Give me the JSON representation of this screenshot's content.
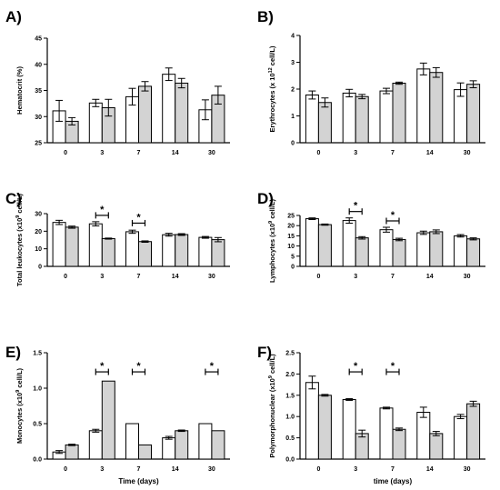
{
  "chart_data": [
    {
      "panel_label": "A)",
      "type": "bar",
      "ylabel": "Hematocrit (%)",
      "ylabel_super": "",
      "ylabel_rest": "",
      "xlabel": "",
      "categories": [
        "0",
        "3",
        "7",
        "14",
        "30"
      ],
      "ylim": [
        25,
        45
      ],
      "yticks": [
        "25",
        "30",
        "35",
        "40",
        "45"
      ],
      "series": [
        {
          "fill": "#ffffff",
          "values": [
            31.1,
            32.6,
            33.8,
            38.1,
            31.3
          ],
          "errors": [
            2.0,
            0.7,
            1.6,
            1.2,
            1.9
          ]
        },
        {
          "fill": "#d3d3d3",
          "values": [
            29.1,
            31.7,
            35.8,
            36.4,
            34.1
          ],
          "errors": [
            0.7,
            1.6,
            0.9,
            0.9,
            1.7
          ]
        }
      ],
      "significance": []
    },
    {
      "panel_label": "B)",
      "type": "bar",
      "ylabel": "Erythrocytes (x 10",
      "ylabel_super": "12",
      "ylabel_rest": " cell/L)",
      "xlabel": "",
      "categories": [
        "0",
        "3",
        "7",
        "14",
        "30"
      ],
      "ylim": [
        0,
        4
      ],
      "yticks": [
        "0",
        "1",
        "2",
        "3",
        "4"
      ],
      "series": [
        {
          "fill": "#ffffff",
          "values": [
            1.78,
            1.85,
            1.93,
            2.75,
            1.98
          ],
          "errors": [
            0.15,
            0.14,
            0.1,
            0.22,
            0.25
          ]
        },
        {
          "fill": "#d3d3d3",
          "values": [
            1.5,
            1.72,
            2.22,
            2.62,
            2.18
          ],
          "errors": [
            0.17,
            0.08,
            0.04,
            0.18,
            0.13
          ]
        }
      ],
      "significance": []
    },
    {
      "panel_label": "C)",
      "type": "bar",
      "ylabel": "Total leukocytes (x10",
      "ylabel_super": "9",
      "ylabel_rest": " cell/L)",
      "xlabel": "",
      "categories": [
        "0",
        "3",
        "7",
        "14",
        "30"
      ],
      "ylim": [
        0,
        30
      ],
      "yticks": [
        "0",
        "10",
        "20",
        "30"
      ],
      "series": [
        {
          "fill": "#ffffff",
          "values": [
            25.0,
            24.2,
            19.7,
            18.0,
            16.5
          ],
          "errors": [
            1.2,
            1.2,
            0.9,
            0.8,
            0.5
          ]
        },
        {
          "fill": "#d3d3d3",
          "values": [
            22.3,
            15.8,
            14.1,
            18.1,
            15.2
          ],
          "errors": [
            0.6,
            0.3,
            0.4,
            0.5,
            1.2
          ]
        }
      ],
      "significance": [
        {
          "category": "3",
          "label": "*"
        },
        {
          "category": "7",
          "label": "*"
        }
      ]
    },
    {
      "panel_label": "D)",
      "type": "bar",
      "ylabel": "Lymphocytes (x10",
      "ylabel_super": "9",
      "ylabel_rest": " cell/L)",
      "xlabel": "",
      "categories": [
        "0",
        "3",
        "7",
        "14",
        "30"
      ],
      "ylim": [
        0,
        25
      ],
      "yticks": [
        "0",
        "5",
        "10",
        "15",
        "20",
        "25"
      ],
      "series": [
        {
          "fill": "#ffffff",
          "values": [
            23.4,
            22.5,
            18.0,
            16.5,
            15.0
          ],
          "errors": [
            0.4,
            1.3,
            1.2,
            0.8,
            0.6
          ]
        },
        {
          "fill": "#d3d3d3",
          "values": [
            20.5,
            14.0,
            13.2,
            17.0,
            13.5
          ],
          "errors": [
            0.3,
            0.6,
            0.6,
            0.9,
            0.5
          ]
        }
      ],
      "significance": [
        {
          "category": "3",
          "label": "*"
        },
        {
          "category": "7",
          "label": "*"
        }
      ]
    },
    {
      "panel_label": "E)",
      "type": "bar",
      "ylabel": "Monocytes (x10",
      "ylabel_super": "9",
      "ylabel_rest": " cell/L)",
      "xlabel": "Time (days)",
      "categories": [
        "0",
        "3",
        "7",
        "14",
        "30"
      ],
      "ylim": [
        0,
        1.5
      ],
      "yticks": [
        "0.0",
        "0.5",
        "1.0",
        "1.5"
      ],
      "series": [
        {
          "fill": "#ffffff",
          "values": [
            0.1,
            0.4,
            0.5,
            0.3,
            0.5
          ],
          "errors": [
            0.02,
            0.02,
            0.0,
            0.02,
            0.0
          ]
        },
        {
          "fill": "#d3d3d3",
          "values": [
            0.2,
            1.1,
            0.2,
            0.4,
            0.4
          ],
          "errors": [
            0.01,
            0.0,
            0.0,
            0.01,
            0.0
          ]
        }
      ],
      "significance": [
        {
          "category": "3",
          "label": "*"
        },
        {
          "category": "7",
          "label": "*"
        },
        {
          "category": "30",
          "label": "*"
        }
      ]
    },
    {
      "panel_label": "F)",
      "type": "bar",
      "ylabel": "Polymorphonuclear (x10",
      "ylabel_super": "9",
      "ylabel_rest": " cell/L)",
      "xlabel": "time (days)",
      "categories": [
        "0",
        "3",
        "7",
        "14",
        "30"
      ],
      "ylim": [
        0,
        2.5
      ],
      "yticks": [
        "0.0",
        "0.5",
        "1.0",
        "1.5",
        "2.0",
        "2.5"
      ],
      "series": [
        {
          "fill": "#ffffff",
          "values": [
            1.8,
            1.4,
            1.2,
            1.1,
            1.0
          ],
          "errors": [
            0.15,
            0.02,
            0.02,
            0.12,
            0.05
          ]
        },
        {
          "fill": "#d3d3d3",
          "values": [
            1.5,
            0.6,
            0.7,
            0.6,
            1.3
          ],
          "errors": [
            0.02,
            0.08,
            0.03,
            0.05,
            0.06
          ]
        }
      ],
      "significance": [
        {
          "category": "3",
          "label": "*"
        },
        {
          "category": "7",
          "label": "*"
        }
      ]
    }
  ]
}
